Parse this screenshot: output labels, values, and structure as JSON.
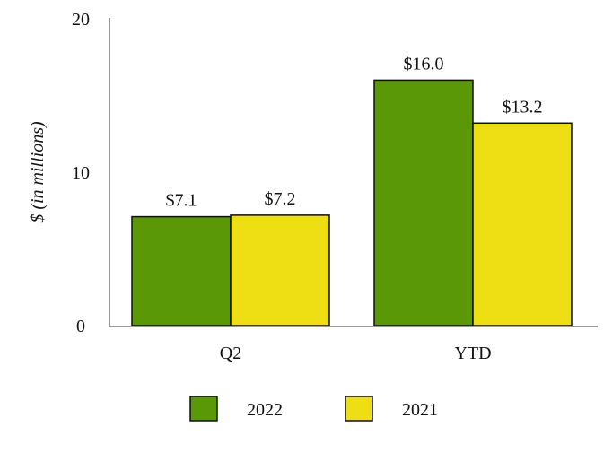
{
  "chart_data": {
    "type": "bar",
    "title": "",
    "xlabel": "",
    "ylabel": "$ (in millions)",
    "ylim": [
      0,
      20
    ],
    "yticks": [
      0,
      10,
      20
    ],
    "ytick_labels": [
      "0",
      "10",
      "20"
    ],
    "categories": [
      "Q2",
      "YTD"
    ],
    "series": [
      {
        "name": "2022",
        "color": "#5a9807",
        "values": [
          7.1,
          16.0
        ],
        "labels": [
          "$7.1",
          "$16.0"
        ]
      },
      {
        "name": "2021",
        "color": "#eedf14",
        "values": [
          7.2,
          13.2
        ],
        "labels": [
          "$7.2",
          "$13.2"
        ]
      }
    ],
    "legend_position": "bottom",
    "grid": false
  }
}
